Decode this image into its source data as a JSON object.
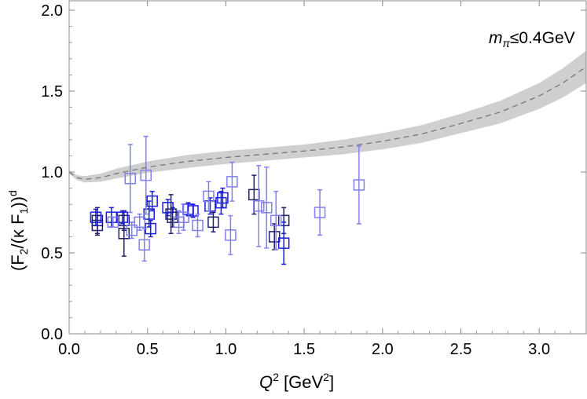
{
  "chart_data": {
    "type": "scatter",
    "title": "",
    "xlabel": {
      "pre": "Q",
      "sup": "2",
      "post": " [GeV",
      "sup2": "2",
      "end": "]"
    },
    "ylabel": {
      "a": "(F",
      "s1": "2",
      "b": "/(κ F",
      "s2": "1",
      "c": "))",
      "sup": "d"
    },
    "annotation": {
      "m": "m",
      "sub": "π",
      "rest": "≤0.4GeV"
    },
    "xlim": [
      0,
      3.3
    ],
    "ylim": [
      0,
      2.0
    ],
    "xticks": [
      "0.0",
      "0.5",
      "1.0",
      "1.5",
      "2.0",
      "2.5",
      "3.0"
    ],
    "yticks": [
      "0.0",
      "0.5",
      "1.0",
      "1.5",
      "2.0"
    ],
    "band": {
      "x": [
        0,
        0.05,
        0.1,
        0.2,
        0.3,
        0.5,
        0.75,
        1.0,
        1.25,
        1.5,
        1.75,
        2.0,
        2.25,
        2.5,
        2.75,
        3.0,
        3.15,
        3.3
      ],
      "center": [
        1.0,
        0.965,
        0.955,
        0.965,
        0.99,
        1.03,
        1.065,
        1.09,
        1.11,
        1.13,
        1.155,
        1.19,
        1.235,
        1.3,
        1.37,
        1.47,
        1.55,
        1.65
      ],
      "halfwidth": [
        0.01,
        0.015,
        0.02,
        0.025,
        0.03,
        0.035,
        0.04,
        0.04,
        0.04,
        0.04,
        0.045,
        0.05,
        0.055,
        0.06,
        0.07,
        0.08,
        0.09,
        0.1
      ]
    },
    "series": [
      {
        "name": "dark",
        "color": "#20206a",
        "points": [
          [
            0.18,
            0.7,
            0.08
          ],
          [
            0.18,
            0.67,
            0.06
          ],
          [
            0.35,
            0.62,
            0.14
          ],
          [
            0.35,
            0.7,
            0.06
          ],
          [
            0.65,
            0.74,
            0.12
          ],
          [
            0.66,
            0.72,
            0.06
          ],
          [
            0.92,
            0.69,
            0.06
          ],
          [
            1.18,
            0.86,
            0.12
          ],
          [
            1.31,
            0.6,
            0.08
          ],
          [
            1.37,
            0.7,
            0.08
          ]
        ]
      },
      {
        "name": "blue",
        "color": "#1a1ae6",
        "points": [
          [
            0.17,
            0.72,
            0.05
          ],
          [
            0.27,
            0.72,
            0.06
          ],
          [
            0.34,
            0.72,
            0.04
          ],
          [
            0.51,
            0.74,
            0.08
          ],
          [
            0.52,
            0.65,
            0.05
          ],
          [
            0.53,
            0.82,
            0.06
          ],
          [
            0.63,
            0.78,
            0.05
          ],
          [
            0.76,
            0.77,
            0.04
          ],
          [
            0.79,
            0.76,
            0.04
          ],
          [
            0.9,
            0.79,
            0.05
          ],
          [
            0.97,
            0.81,
            0.07
          ],
          [
            0.98,
            0.84,
            0.06
          ],
          [
            1.37,
            0.56,
            0.13
          ]
        ]
      },
      {
        "name": "light",
        "color": "#8080f0",
        "points": [
          [
            0.28,
            0.69,
            0.03
          ],
          [
            0.39,
            0.96,
            0.21
          ],
          [
            0.49,
            0.98,
            0.24
          ],
          [
            0.4,
            0.64,
            0.05
          ],
          [
            0.48,
            0.55,
            0.1
          ],
          [
            0.45,
            0.69,
            0.05
          ],
          [
            0.7,
            0.69,
            0.07
          ],
          [
            0.73,
            0.72,
            0.08
          ],
          [
            0.82,
            0.67,
            0.07
          ],
          [
            0.89,
            0.85,
            0.09
          ],
          [
            1.03,
            0.61,
            0.12
          ],
          [
            1.04,
            0.94,
            0.12
          ],
          [
            1.21,
            0.79,
            0.25
          ],
          [
            1.26,
            0.78,
            0.25
          ],
          [
            1.32,
            0.7,
            0.18
          ],
          [
            1.6,
            0.75,
            0.14
          ],
          [
            1.85,
            0.92,
            0.24
          ]
        ]
      }
    ]
  }
}
